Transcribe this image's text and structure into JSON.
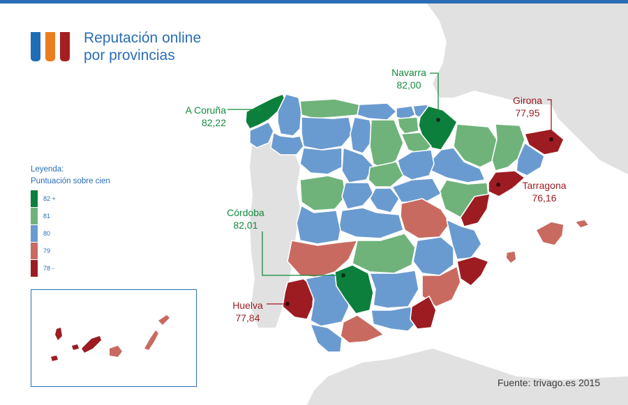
{
  "title": {
    "line1": "Reputación online",
    "line2": "por provincias"
  },
  "logo_colors": [
    "#1f6db6",
    "#ea7d1e",
    "#a61e22"
  ],
  "legend": {
    "title": "Leyenda:",
    "subtitle": "Puntuación sobre cien",
    "items": [
      {
        "label": "82 +",
        "color": "#0d7f3c"
      },
      {
        "label": "81",
        "color": "#6fb37a"
      },
      {
        "label": "80",
        "color": "#6a9bd0"
      },
      {
        "label": "79",
        "color": "#c96a60"
      },
      {
        "label": "78 -",
        "color": "#9c1c22"
      }
    ]
  },
  "callouts": {
    "a_coruna": {
      "name": "A Coruña",
      "value": "82,22"
    },
    "navarra": {
      "name": "Navarra",
      "value": "82,00"
    },
    "girona": {
      "name": "Girona",
      "value": "77,95"
    },
    "tarragona": {
      "name": "Tarragona",
      "value": "76,16"
    },
    "cordoba": {
      "name": "Córdoba",
      "value": "82,01"
    },
    "huelva": {
      "name": "Huelva",
      "value": "77,84"
    }
  },
  "source": "Fuente: trivago.es 2015",
  "colors": {
    "sea": "#ffffff",
    "neighbor_land": "#e1e1e1",
    "accent": "#2a6db5"
  }
}
